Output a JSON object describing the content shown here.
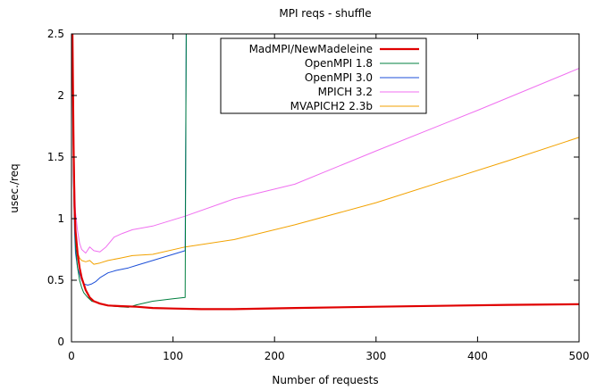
{
  "chart_data": {
    "type": "line",
    "title": "MPI reqs - shuffle",
    "xlabel": "Number of requests",
    "ylabel": "usec./req",
    "xlim": [
      0,
      500
    ],
    "ylim": [
      0,
      2.5
    ],
    "xticks": [
      0,
      100,
      200,
      300,
      400,
      500
    ],
    "yticks": [
      0,
      0.5,
      1,
      1.5,
      2,
      2.5
    ],
    "ytick_labels": [
      "0",
      "0.5",
      "1",
      "1.5",
      "2",
      "2.5"
    ],
    "grid": false,
    "legend_position": "top-center",
    "series": [
      {
        "name": "MadMPI/NewMadeleine",
        "color": "#e00000",
        "width": 2.2,
        "points": [
          [
            1,
            2.5
          ],
          [
            2,
            1.6
          ],
          [
            3,
            1.1
          ],
          [
            4,
            0.9
          ],
          [
            6,
            0.72
          ],
          [
            8,
            0.6
          ],
          [
            10,
            0.52
          ],
          [
            14,
            0.42
          ],
          [
            18,
            0.36
          ],
          [
            22,
            0.33
          ],
          [
            28,
            0.31
          ],
          [
            36,
            0.295
          ],
          [
            48,
            0.29
          ],
          [
            64,
            0.285
          ],
          [
            80,
            0.275
          ],
          [
            100,
            0.27
          ],
          [
            128,
            0.265
          ],
          [
            160,
            0.265
          ],
          [
            220,
            0.275
          ],
          [
            300,
            0.285
          ],
          [
            430,
            0.3
          ],
          [
            500,
            0.305
          ]
        ]
      },
      {
        "name": "OpenMPI 1.8",
        "color": "#007f3f",
        "width": 1,
        "points": [
          [
            1,
            2.5
          ],
          [
            2,
            1.5
          ],
          [
            3,
            1.0
          ],
          [
            4,
            0.78
          ],
          [
            6,
            0.6
          ],
          [
            8,
            0.5
          ],
          [
            10,
            0.44
          ],
          [
            12,
            0.4
          ],
          [
            16,
            0.36
          ],
          [
            20,
            0.33
          ],
          [
            24,
            0.32
          ],
          [
            32,
            0.3
          ],
          [
            40,
            0.29
          ],
          [
            48,
            0.285
          ],
          [
            56,
            0.28
          ],
          [
            64,
            0.3
          ],
          [
            80,
            0.33
          ],
          [
            100,
            0.35
          ],
          [
            112,
            0.36
          ],
          [
            113,
            2.5
          ]
        ]
      },
      {
        "name": "OpenMPI 3.0",
        "color": "#1c4fd8",
        "width": 1,
        "points": [
          [
            1,
            2.5
          ],
          [
            2,
            1.3
          ],
          [
            3,
            0.9
          ],
          [
            4,
            0.72
          ],
          [
            6,
            0.6
          ],
          [
            8,
            0.55
          ],
          [
            10,
            0.5
          ],
          [
            12,
            0.47
          ],
          [
            16,
            0.46
          ],
          [
            20,
            0.47
          ],
          [
            24,
            0.49
          ],
          [
            28,
            0.52
          ],
          [
            36,
            0.56
          ],
          [
            44,
            0.58
          ],
          [
            56,
            0.6
          ],
          [
            64,
            0.62
          ],
          [
            80,
            0.66
          ],
          [
            100,
            0.71
          ],
          [
            112,
            0.74
          ],
          [
            113,
            2.5
          ]
        ]
      },
      {
        "name": "MPICH 3.2",
        "color": "#f06ff0",
        "width": 1,
        "points": [
          [
            1,
            2.5
          ],
          [
            2,
            1.8
          ],
          [
            3,
            1.3
          ],
          [
            4,
            1.05
          ],
          [
            6,
            0.9
          ],
          [
            8,
            0.8
          ],
          [
            10,
            0.75
          ],
          [
            14,
            0.72
          ],
          [
            18,
            0.77
          ],
          [
            22,
            0.74
          ],
          [
            28,
            0.73
          ],
          [
            34,
            0.77
          ],
          [
            42,
            0.85
          ],
          [
            50,
            0.88
          ],
          [
            60,
            0.91
          ],
          [
            80,
            0.94
          ],
          [
            112,
            1.02
          ],
          [
            160,
            1.16
          ],
          [
            220,
            1.28
          ],
          [
            300,
            1.55
          ],
          [
            400,
            1.88
          ],
          [
            500,
            2.22
          ]
        ]
      },
      {
        "name": "MVAPICH2 2.3b",
        "color": "#f2a200",
        "width": 1,
        "points": [
          [
            1,
            2.3
          ],
          [
            2,
            1.4
          ],
          [
            3,
            1.0
          ],
          [
            4,
            0.82
          ],
          [
            6,
            0.72
          ],
          [
            8,
            0.68
          ],
          [
            10,
            0.66
          ],
          [
            14,
            0.65
          ],
          [
            18,
            0.66
          ],
          [
            22,
            0.63
          ],
          [
            28,
            0.64
          ],
          [
            36,
            0.66
          ],
          [
            48,
            0.68
          ],
          [
            60,
            0.7
          ],
          [
            80,
            0.71
          ],
          [
            112,
            0.77
          ],
          [
            160,
            0.83
          ],
          [
            220,
            0.95
          ],
          [
            300,
            1.13
          ],
          [
            430,
            1.47
          ],
          [
            500,
            1.66
          ]
        ]
      }
    ]
  }
}
